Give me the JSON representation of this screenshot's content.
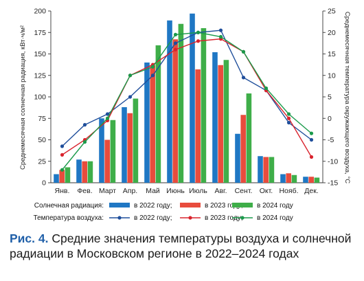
{
  "colors": {
    "s2022": "#1f77c4",
    "s2023": "#e84c3d",
    "s2024": "#3fae49",
    "t2022": "#1f4e9b",
    "t2023": "#d9232d",
    "t2024": "#1b9a4b",
    "accent": "#1f5fa8"
  },
  "chart_data": {
    "type": "bar",
    "categories": [
      "Янв.",
      "Фев.",
      "Март",
      "Апр.",
      "Май",
      "Июнь",
      "Июль",
      "Авг.",
      "Сент.",
      "Окт.",
      "Нояб.",
      "Дек."
    ],
    "ylabel": "Среднемесячная солнечная радиация, кВт·ч/м²",
    "y2label": "Среднемесячная температура окружающего воздуха, °С",
    "ylim": [
      0,
      200
    ],
    "y2lim": [
      -15,
      25
    ],
    "yticks": [
      0,
      25,
      50,
      75,
      100,
      125,
      150,
      175,
      200
    ],
    "y2ticks": [
      -15,
      -10,
      -5,
      0,
      5,
      10,
      15,
      20,
      25
    ],
    "series": [
      {
        "name": "в 2022 году;",
        "kind": "bar",
        "values": [
          10,
          27,
          75,
          88,
          140,
          189,
          197,
          152,
          57,
          31,
          10,
          7
        ]
      },
      {
        "name": "в 2023 году;",
        "kind": "bar",
        "values": [
          15,
          25,
          50,
          81,
          137,
          167,
          132,
          137,
          79,
          30,
          11,
          7
        ]
      },
      {
        "name": "в 2024 году",
        "kind": "bar",
        "values": [
          18,
          25,
          73,
          98,
          160,
          185,
          180,
          143,
          104,
          30,
          9,
          6
        ]
      },
      {
        "name": "в 2022 году;",
        "kind": "line",
        "values": [
          -6.5,
          -1.5,
          1,
          5,
          10,
          17.5,
          20,
          20.5,
          9.5,
          6.5,
          -1,
          -5
        ]
      },
      {
        "name": "в 2023 году;",
        "kind": "line",
        "values": [
          -8.5,
          -5,
          -0.5,
          10,
          12.5,
          16,
          18,
          18.5,
          15.5,
          6.5,
          0,
          -9
        ]
      },
      {
        "name": "в 2024 году",
        "kind": "line",
        "values": [
          -12,
          -5.5,
          0,
          10,
          12,
          19.5,
          20,
          19,
          15.5,
          7,
          1,
          -3.5
        ]
      }
    ],
    "legend": {
      "bars_label": "Солнечная радиация:",
      "lines_label": "Температура воздуха:"
    }
  },
  "caption": {
    "label": "Рис. 4.",
    "text": " Средние значения температуры воздуха и солнечной радиации в Московском регионе в 2022–2024 годах"
  }
}
